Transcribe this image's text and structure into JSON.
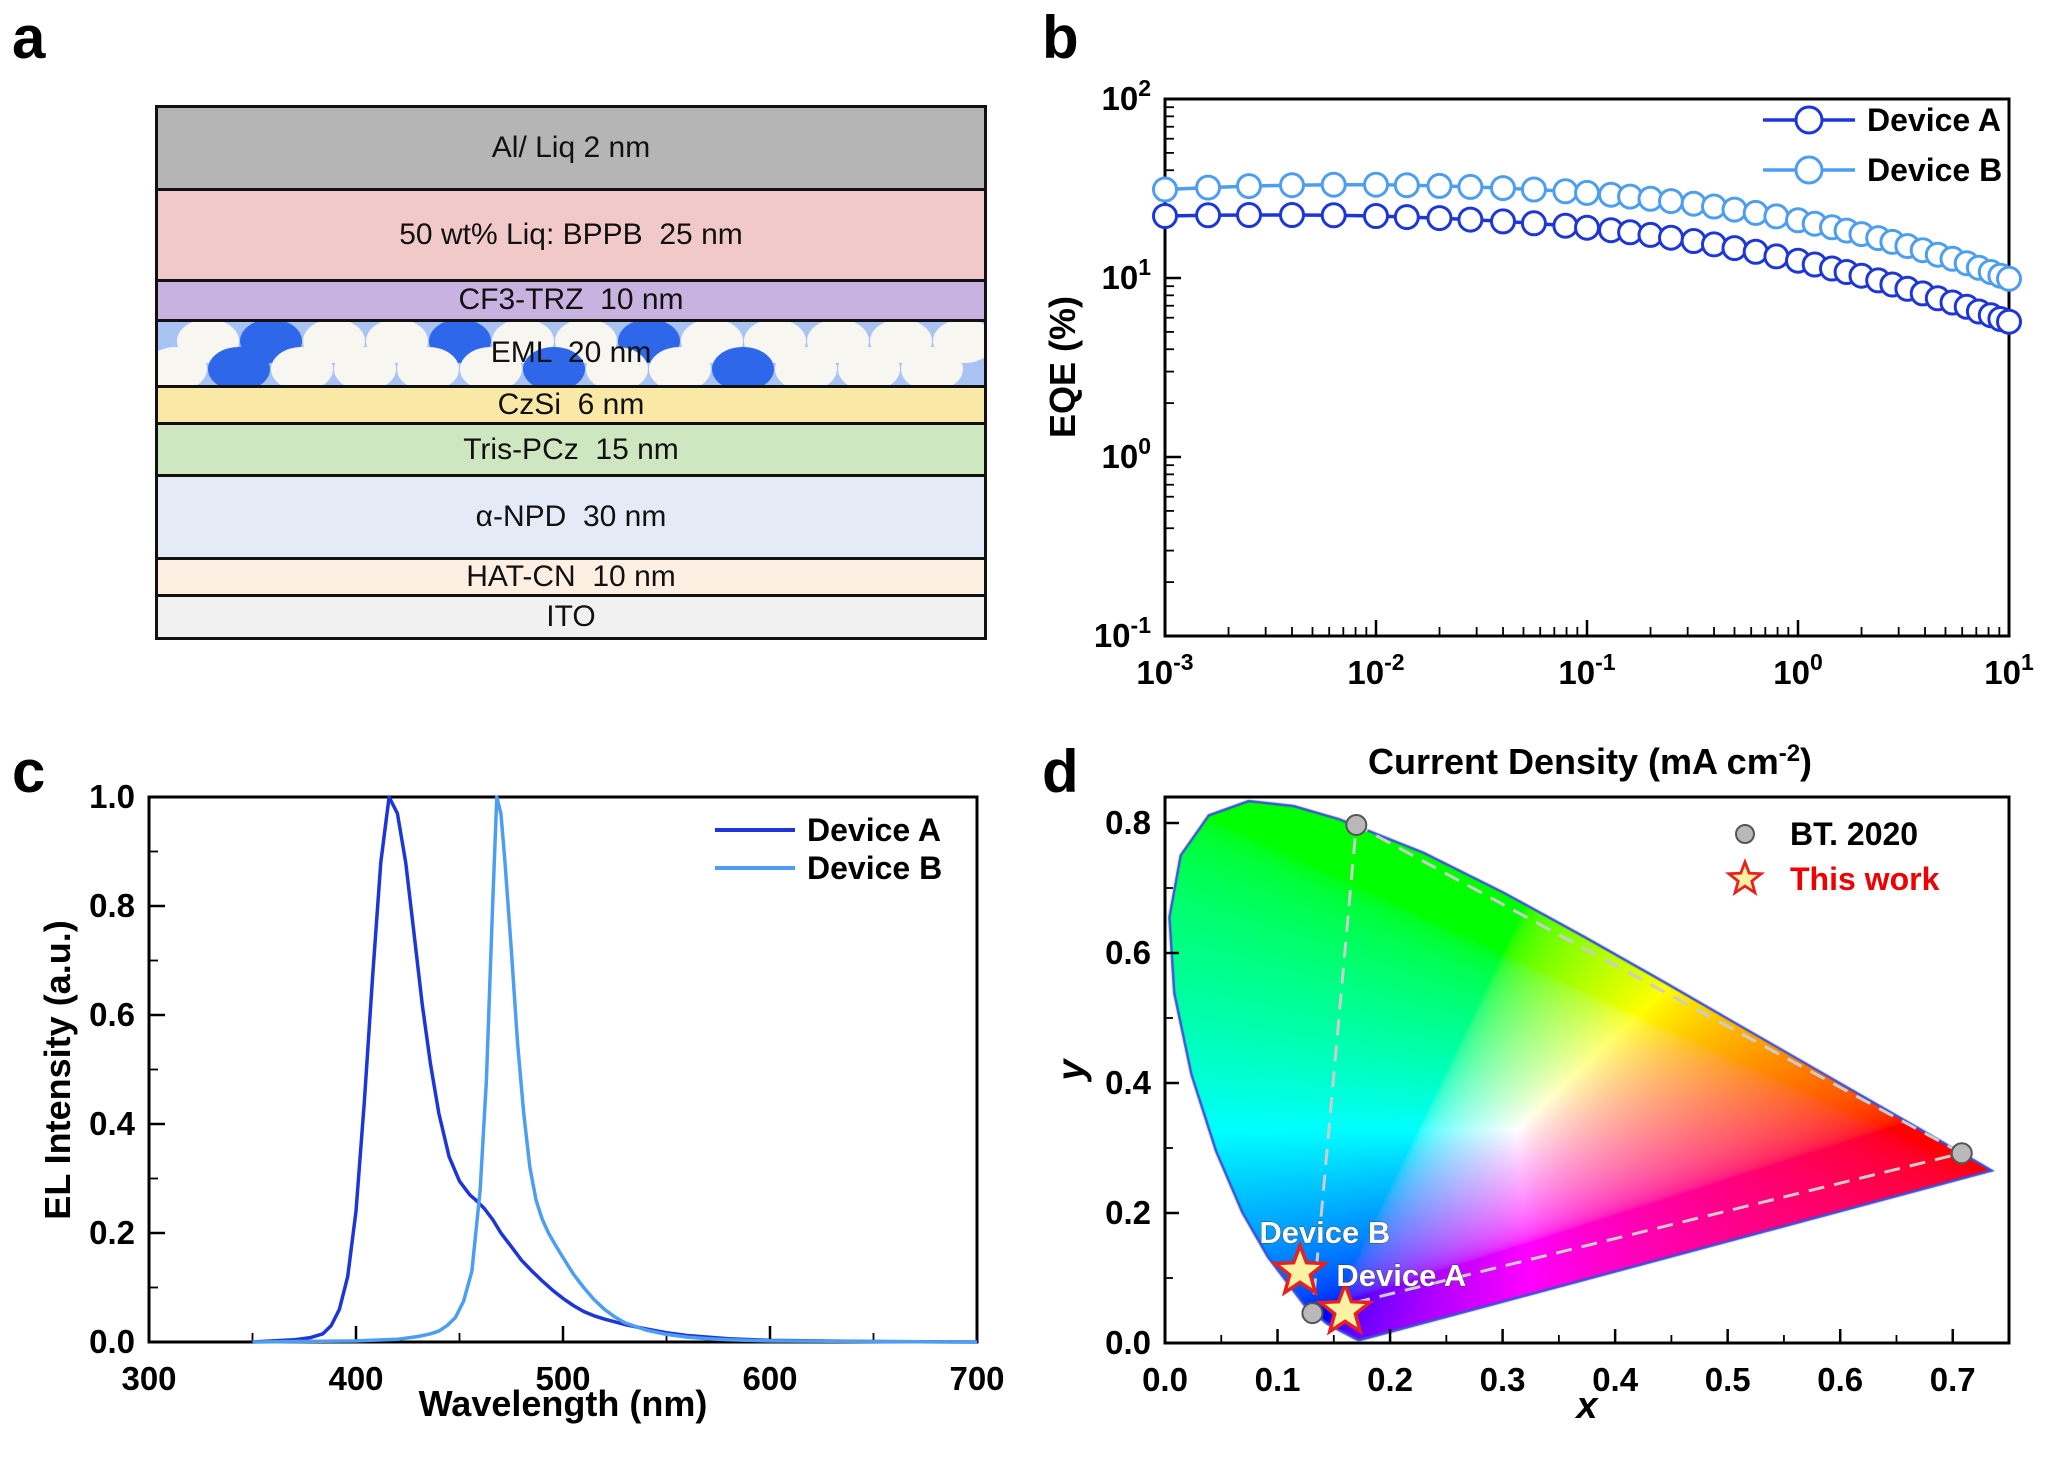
{
  "figure": {
    "panel_labels": {
      "a": "a",
      "b": "b",
      "c": "c",
      "d": "d"
    }
  },
  "panels": {
    "a": {
      "description": "OLED device layer stack",
      "layers": [
        {
          "label": "Al/ Liq 2 nm",
          "color": "#b5b5b5",
          "h": 88
        },
        {
          "label": "50 wt% Liq: BPPB  25 nm",
          "color": "#f2c9c9",
          "h": 98
        },
        {
          "label": "CF3-TRZ  10 nm",
          "color": "#c8b2df",
          "h": 40
        },
        {
          "label": "EML  20 nm",
          "color": "#a9c3f2",
          "h": 70,
          "pattern": "dopant-dots"
        },
        {
          "label": "CzSi  6 nm",
          "color": "#fae8a6",
          "h": 38
        },
        {
          "label": "Tris-PCz  15 nm",
          "color": "#cfe7c1",
          "h": 54
        },
        {
          "label": "α-NPD  30 nm",
          "color": "#e5eaf7",
          "h": 88
        },
        {
          "label": "HAT-CN  10 nm",
          "color": "#fdefe2",
          "h": 38
        },
        {
          "label": "ITO",
          "color": "#f1f1f1",
          "h": 44
        }
      ],
      "eml_dots": {
        "host_color": "#f8f6f1",
        "dopant_color": "#2e67ea"
      }
    }
  },
  "chart_data": [
    {
      "id": "eqe",
      "panel": "b",
      "type": "line",
      "x_scale": "log",
      "y_scale": "log",
      "xlim": [
        0.001,
        10
      ],
      "ylim": [
        0.1,
        100
      ],
      "xlabel_main": "Current Density (mA cm",
      "xlabel_sup": "-2",
      "xlabel_end": ")",
      "ylabel": "EQE (%)",
      "x_tick_exponents": [
        -3,
        -2,
        -1,
        0,
        1
      ],
      "y_tick_exponents": [
        2,
        1,
        0,
        -1
      ],
      "legend_position": "top-right",
      "x": [
        0.001,
        0.0016,
        0.0025,
        0.004,
        0.0063,
        0.01,
        0.014,
        0.02,
        0.028,
        0.04,
        0.056,
        0.079,
        0.1,
        0.13,
        0.16,
        0.2,
        0.25,
        0.32,
        0.4,
        0.5,
        0.63,
        0.79,
        1.0,
        1.2,
        1.45,
        1.7,
        2.0,
        2.4,
        2.8,
        3.3,
        3.9,
        4.6,
        5.4,
        6.3,
        7.2,
        8.2,
        9.1,
        10
      ],
      "series": [
        {
          "name": "Device A",
          "color": "#1d36d8",
          "marker": "open-circle",
          "values": [
            22.2,
            22.4,
            22.5,
            22.5,
            22.4,
            22.2,
            21.9,
            21.6,
            21.2,
            20.7,
            20.2,
            19.6,
            19.1,
            18.5,
            18.0,
            17.4,
            16.8,
            16.1,
            15.4,
            14.7,
            14.0,
            13.2,
            12.5,
            11.9,
            11.3,
            10.8,
            10.3,
            9.7,
            9.2,
            8.7,
            8.2,
            7.7,
            7.3,
            6.9,
            6.5,
            6.2,
            5.9,
            5.7
          ]
        },
        {
          "name": "Device B",
          "color": "#4d9ef0",
          "marker": "open-circle",
          "values": [
            31.2,
            32.0,
            32.6,
            33.0,
            33.2,
            33.2,
            33.0,
            32.7,
            32.3,
            31.8,
            31.2,
            30.5,
            29.9,
            29.2,
            28.5,
            27.7,
            26.9,
            26.0,
            25.1,
            24.1,
            23.1,
            22.1,
            21.0,
            20.1,
            19.2,
            18.4,
            17.6,
            16.7,
            15.9,
            15.1,
            14.3,
            13.5,
            12.8,
            12.1,
            11.4,
            10.8,
            10.3,
            9.9
          ]
        }
      ]
    },
    {
      "id": "el-spectra",
      "panel": "c",
      "type": "line",
      "x_scale": "linear",
      "y_scale": "linear",
      "xlim": [
        300,
        700
      ],
      "ylim": [
        0,
        1.0
      ],
      "xlabel": "Wavelength (nm)",
      "ylabel": "EL Intensity (a.u.)",
      "xticks": [
        300,
        400,
        500,
        600,
        700
      ],
      "yticks": [
        0.0,
        0.2,
        0.4,
        0.6,
        0.8,
        1.0
      ],
      "legend_position": "top-right",
      "series": [
        {
          "name": "Device A",
          "color": "#1d36d8",
          "peak_nm": 416,
          "x": [
            350,
            360,
            370,
            378,
            384,
            388,
            392,
            396,
            400,
            404,
            408,
            412,
            416,
            420,
            424,
            428,
            432,
            436,
            440,
            445,
            450,
            455,
            458,
            462,
            466,
            470,
            475,
            480,
            485,
            490,
            495,
            500,
            505,
            510,
            515,
            520,
            530,
            540,
            550,
            560,
            580,
            600,
            650,
            700
          ],
          "values": [
            0,
            0.002,
            0.004,
            0.008,
            0.015,
            0.03,
            0.06,
            0.12,
            0.24,
            0.44,
            0.67,
            0.88,
            1.0,
            0.97,
            0.88,
            0.75,
            0.62,
            0.51,
            0.42,
            0.34,
            0.295,
            0.27,
            0.26,
            0.245,
            0.225,
            0.2,
            0.175,
            0.15,
            0.13,
            0.112,
            0.095,
            0.08,
            0.067,
            0.056,
            0.048,
            0.042,
            0.032,
            0.024,
            0.017,
            0.012,
            0.006,
            0.003,
            0.001,
            0
          ]
        },
        {
          "name": "Device B",
          "color": "#4d9ef0",
          "peak_nm": 468,
          "x": [
            350,
            400,
            420,
            430,
            436,
            440,
            444,
            448,
            452,
            456,
            460,
            463,
            466,
            468,
            470,
            472,
            475,
            478,
            481,
            484,
            487,
            490,
            493,
            496,
            500,
            505,
            510,
            515,
            520,
            525,
            530,
            540,
            550,
            560,
            570,
            580,
            600,
            650,
            700
          ],
          "values": [
            0,
            0.002,
            0.005,
            0.01,
            0.015,
            0.02,
            0.03,
            0.045,
            0.075,
            0.13,
            0.28,
            0.48,
            0.8,
            1.0,
            0.97,
            0.88,
            0.72,
            0.55,
            0.42,
            0.32,
            0.26,
            0.225,
            0.2,
            0.18,
            0.155,
            0.125,
            0.1,
            0.078,
            0.06,
            0.046,
            0.035,
            0.022,
            0.014,
            0.009,
            0.006,
            0.004,
            0.002,
            0.001,
            0
          ]
        }
      ]
    },
    {
      "id": "cie-1931",
      "panel": "d",
      "type": "scatter",
      "xlim": [
        0,
        0.75
      ],
      "ylim": [
        0,
        0.84
      ],
      "xlabel": "x",
      "ylabel": "y",
      "xticks": [
        0.0,
        0.1,
        0.2,
        0.3,
        0.4,
        0.5,
        0.6,
        0.7
      ],
      "yticks": [
        0.0,
        0.2,
        0.4,
        0.6,
        0.8
      ],
      "bt2020_triangle": [
        [
          0.708,
          0.292
        ],
        [
          0.17,
          0.797
        ],
        [
          0.131,
          0.046
        ]
      ],
      "device_points": [
        {
          "name": "Device A",
          "x": 0.16,
          "y": 0.05,
          "label_at": [
            0.21,
            0.105
          ]
        },
        {
          "name": "Device B",
          "x": 0.12,
          "y": 0.11,
          "label_at": [
            0.142,
            0.171
          ]
        }
      ],
      "legend": [
        {
          "label": "BT. 2020",
          "marker": "circle",
          "text_color": "#000000"
        },
        {
          "label": "This work",
          "marker": "star",
          "text_color": "#f00000"
        }
      ],
      "marker_colors": {
        "bt2020_fill": "#b9b9b9",
        "bt2020_stroke": "#555555",
        "star_fill": "#f9f2a2",
        "star_stroke": "#e82020",
        "triangle_dash": "#cccccc",
        "locus_outline": "#3b4fd8",
        "point_label": "#ffffff"
      },
      "spectral_locus": [
        [
          0.1741,
          0.005
        ],
        [
          0.1738,
          0.0049
        ],
        [
          0.1733,
          0.0048
        ],
        [
          0.1726,
          0.0048
        ],
        [
          0.1714,
          0.0051
        ],
        [
          0.1689,
          0.0069
        ],
        [
          0.1644,
          0.0109
        ],
        [
          0.1566,
          0.0177
        ],
        [
          0.144,
          0.0297
        ],
        [
          0.1241,
          0.0578
        ],
        [
          0.0913,
          0.1327
        ],
        [
          0.0687,
          0.2007
        ],
        [
          0.0454,
          0.295
        ],
        [
          0.0235,
          0.4127
        ],
        [
          0.0082,
          0.5384
        ],
        [
          0.0039,
          0.6548
        ],
        [
          0.0139,
          0.7502
        ],
        [
          0.0389,
          0.812
        ],
        [
          0.0743,
          0.8338
        ],
        [
          0.1142,
          0.8262
        ],
        [
          0.1547,
          0.8059
        ],
        [
          0.2296,
          0.7543
        ],
        [
          0.3016,
          0.6923
        ],
        [
          0.3731,
          0.6245
        ],
        [
          0.4441,
          0.5547
        ],
        [
          0.5125,
          0.4866
        ],
        [
          0.5752,
          0.4242
        ],
        [
          0.627,
          0.3725
        ],
        [
          0.6658,
          0.334
        ],
        [
          0.6915,
          0.3083
        ],
        [
          0.7079,
          0.292
        ],
        [
          0.719,
          0.2809
        ],
        [
          0.726,
          0.274
        ],
        [
          0.73,
          0.27
        ],
        [
          0.7334,
          0.2666
        ],
        [
          0.7347,
          0.2653
        ]
      ]
    }
  ]
}
